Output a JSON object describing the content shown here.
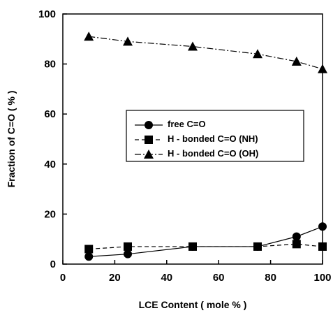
{
  "chart_data": {
    "type": "line",
    "title": "",
    "xlabel": "LCE Content ( mole % )",
    "ylabel": "Fraction of C=O ( % )",
    "xlim": [
      0,
      100
    ],
    "ylim": [
      0,
      100
    ],
    "xticks": [
      0,
      20,
      40,
      60,
      80,
      100
    ],
    "yticks": [
      0,
      20,
      40,
      60,
      80,
      100
    ],
    "grid": false,
    "legend_position": "center-right",
    "series": [
      {
        "name": "free C=O",
        "marker": "circle",
        "line_style": "solid",
        "x": [
          10,
          25,
          50,
          75,
          90,
          100
        ],
        "y": [
          3,
          4,
          7,
          7,
          11,
          15
        ]
      },
      {
        "name": "H - bonded C=O (NH)",
        "marker": "square",
        "line_style": "dashed",
        "x": [
          10,
          25,
          50,
          75,
          90,
          100
        ],
        "y": [
          6,
          7,
          7,
          7,
          8,
          7
        ]
      },
      {
        "name": "H - bonded C=O (OH)",
        "marker": "triangle",
        "line_style": "dash-dot",
        "x": [
          10,
          25,
          50,
          75,
          90,
          100
        ],
        "y": [
          91,
          89,
          87,
          84,
          81,
          78
        ]
      }
    ]
  }
}
